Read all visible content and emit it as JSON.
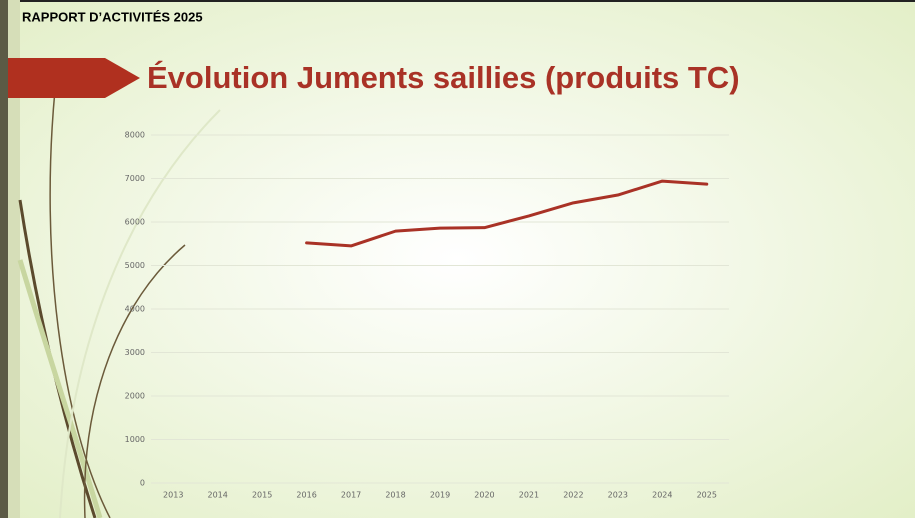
{
  "header": {
    "label": "RAPPORT D’ACTIVITÉS 2025"
  },
  "chart_data": {
    "type": "line",
    "title": "Évolution Juments saillies (produits TC)",
    "categories": [
      "2013",
      "2014",
      "2015",
      "2016",
      "2017",
      "2018",
      "2019",
      "2020",
      "2021",
      "2022",
      "2023",
      "2024",
      "2025"
    ],
    "series": [
      {
        "name": "Juments saillies",
        "color": "#a93226",
        "values": [
          null,
          null,
          null,
          5520,
          5450,
          5790,
          5860,
          5870,
          6140,
          6440,
          6620,
          6940,
          6870
        ]
      }
    ],
    "ylim": [
      0,
      8000
    ],
    "yticks": [
      0,
      1000,
      2000,
      3000,
      4000,
      5000,
      6000,
      7000,
      8000
    ],
    "grid": true
  }
}
